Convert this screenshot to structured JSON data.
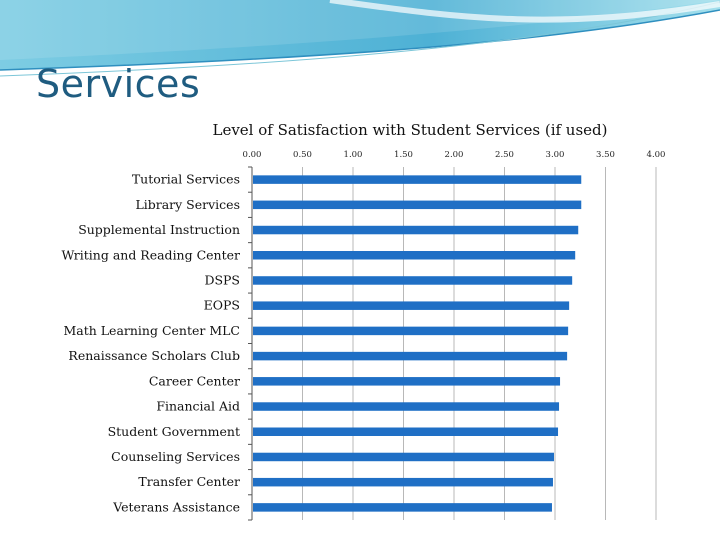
{
  "slide": {
    "title": "Services"
  },
  "chart_data": {
    "type": "bar",
    "orientation": "horizontal",
    "title": "Level of Satisfaction with Student Services (if used)",
    "xlabel": "",
    "ylabel": "",
    "xlim": [
      0,
      4
    ],
    "tick_values": [
      0,
      0.5,
      1,
      1.5,
      2,
      2.5,
      3,
      3.5,
      4
    ],
    "tick_labels": [
      "0.00",
      "0.50",
      "1.00",
      "1.50",
      "2.00",
      "2.50",
      "3.00",
      "3.50",
      "4.00"
    ],
    "axis_position": "top",
    "grid": true,
    "legend": "none",
    "bar_color": "#1f6fc5",
    "categories": [
      "Tutorial Services",
      "Library Services",
      "Supplemental Instruction",
      "Writing and Reading Center",
      "DSPS",
      "EOPS",
      "Math Learning Center MLC",
      "Renaissance Scholars Club",
      "Career Center",
      "Financial Aid",
      "Student Government",
      "Counseling Services",
      "Transfer Center",
      "Veterans Assistance"
    ],
    "values": [
      3.26,
      3.26,
      3.23,
      3.2,
      3.17,
      3.14,
      3.13,
      3.12,
      3.05,
      3.04,
      3.03,
      2.99,
      2.98,
      2.97
    ]
  }
}
